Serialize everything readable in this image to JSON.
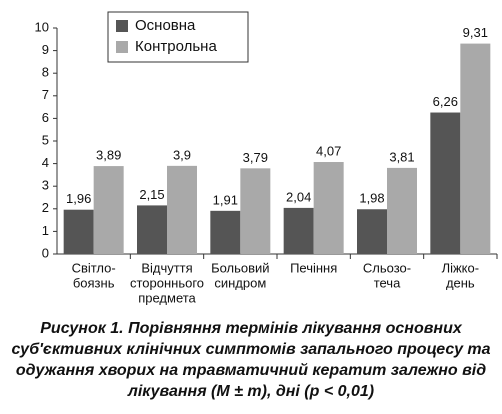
{
  "chart_data": {
    "type": "bar",
    "caption": "Рисунок 1. Порівняння термінів лікування основних суб'єктивних клінічних симптомів запального процесу та одужання хворих на травматичний кератит залежно від лікування (M ± m), дні (p < 0,01)",
    "categories": [
      [
        "Світло-",
        "боязнь"
      ],
      [
        "Відчуття",
        "стороннього",
        "предмета"
      ],
      [
        "Больовий",
        "синдром"
      ],
      [
        "Печіння"
      ],
      [
        "Сльозо-",
        "теча"
      ],
      [
        "Ліжко-",
        "день"
      ]
    ],
    "series": [
      {
        "name": "Основна",
        "color": "#555555",
        "values": [
          1.96,
          2.15,
          1.91,
          2.04,
          1.98,
          6.26
        ],
        "value_labels": [
          "1,96",
          "2,15",
          "1,91",
          "2,04",
          "1,98",
          "6,26"
        ]
      },
      {
        "name": "Контрольна",
        "color": "#a9a9a9",
        "values": [
          3.89,
          3.9,
          3.79,
          4.07,
          3.81,
          9.31
        ],
        "value_labels": [
          "3,89",
          "3,9",
          "3,79",
          "4,07",
          "3,81",
          "9,31"
        ]
      }
    ],
    "ylim": [
      0,
      10
    ],
    "yticks": [
      0,
      1,
      2,
      3,
      4,
      5,
      6,
      7,
      8,
      9,
      10
    ],
    "grid": false,
    "legend": "top-left"
  }
}
